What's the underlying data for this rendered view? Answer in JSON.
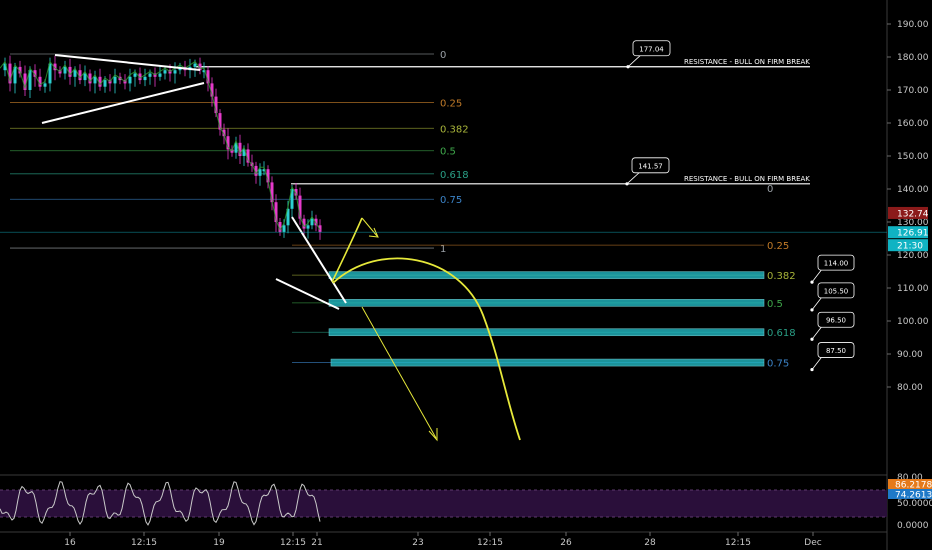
{
  "colors": {
    "background": "#000000",
    "fib_high": "#9aa0a6",
    "fib_025": "#c07a28",
    "fib_0382": "#a8b43a",
    "fib_05": "#3fa84b",
    "fib_0618": "#2a9f86",
    "fib_075": "#3b83c7",
    "cyan_band": "#22b8c2",
    "yellow_path": "#e6e83a",
    "white_line": "#ffffff",
    "candle_up": "#2ccfd0",
    "candle_down": "#e63acb",
    "ma_green": "#2fa32f",
    "ma_red": "#b03030",
    "rsi_line": "#c9c9c9",
    "rsi_panel": "#2a0f3a",
    "price_red": "#8b1a1a",
    "price_cyan": "#10b3c3",
    "price_orange": "#e57a1a",
    "price_blue": "#1e79c8"
  },
  "chart_data": {
    "type": "candlestick",
    "x_axis": {
      "ticks": [
        "16",
        "12:15",
        "19",
        "12:15",
        "21",
        "23",
        "12:15",
        "26",
        "28",
        "12:15",
        "Dec"
      ]
    },
    "y_axis": {
      "range": [
        80,
        190
      ],
      "ticks": [
        "190.00",
        "180.00",
        "170.00",
        "160.00",
        "150.00",
        "140.00",
        "130.00",
        "120.00",
        "110.00",
        "100.00",
        "90.00",
        "80.00"
      ]
    },
    "price_tags": {
      "last_red": "132.74",
      "current": "126.91",
      "countdown": "21:30"
    },
    "fib_upper": {
      "levels": [
        {
          "ratio": "0",
          "price": 180.9
        },
        {
          "ratio": "0.25",
          "price": 166.2
        },
        {
          "ratio": "0.382",
          "price": 158.4
        },
        {
          "ratio": "0.5",
          "price": 151.6
        },
        {
          "ratio": "0.618",
          "price": 144.6
        },
        {
          "ratio": "0.75",
          "price": 136.9
        },
        {
          "ratio": "1",
          "price": 122.1
        }
      ]
    },
    "fib_lower": {
      "levels": [
        {
          "ratio": "0.25",
          "price": 123.0
        },
        {
          "ratio": "0.382",
          "price": 113.9
        },
        {
          "ratio": "0.5",
          "price": 105.5
        },
        {
          "ratio": "0.618",
          "price": 96.6
        },
        {
          "ratio": "0.75",
          "price": 87.4
        }
      ]
    },
    "horizontal_lines": [
      {
        "price": 177.04,
        "label": "RESISTANCE - BULL ON FIRM BREAK",
        "callout": "177.04"
      },
      {
        "price": 141.57,
        "label": "RESISTANCE - BULL ON FIRM BREAK",
        "callout": "141.57",
        "tail_label": "0"
      }
    ],
    "target_callouts": [
      "114.00",
      "105.50",
      "96.50",
      "87.50"
    ],
    "rsi": {
      "range": [
        0,
        100
      ],
      "ticks": [
        "80.00",
        "50.0000",
        "0.0000"
      ],
      "value_tags": [
        "86.2178",
        "74.2613"
      ]
    }
  }
}
